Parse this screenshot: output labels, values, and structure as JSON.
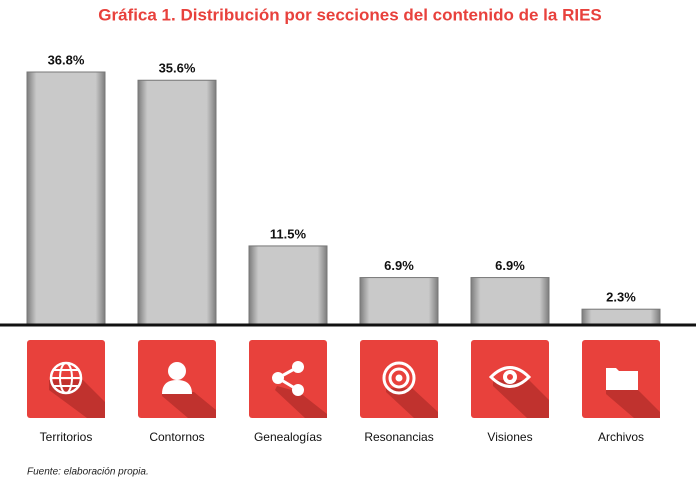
{
  "chart_data": {
    "type": "bar",
    "title": "Gráfica 1. Distribución por secciones del contenido de la RIES",
    "categories": [
      "Territorios",
      "Contornos",
      "Genealogías",
      "Resonancias",
      "Visiones",
      "Archivos"
    ],
    "values": [
      36.8,
      35.6,
      11.5,
      6.9,
      6.9,
      2.3
    ],
    "value_labels": [
      "36.8%",
      "35.6%",
      "11.5%",
      "6.9%",
      "6.9%",
      "2.3%"
    ],
    "color": "#b5b5b5",
    "source": "Fuente: elaboración propia."
  }
}
